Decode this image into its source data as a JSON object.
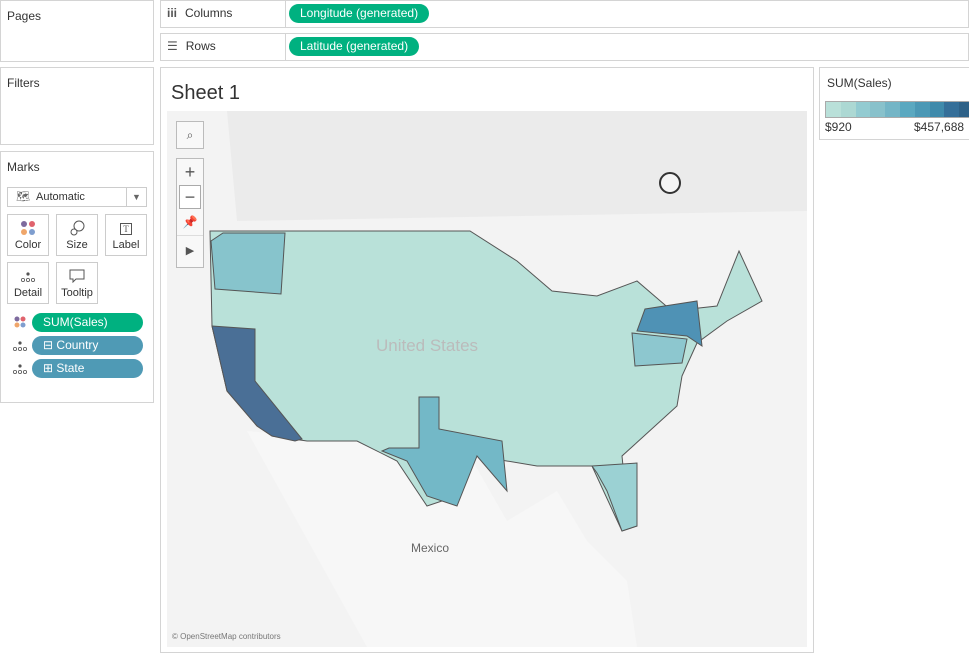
{
  "pages": {
    "title": "Pages"
  },
  "filters": {
    "title": "Filters"
  },
  "marks": {
    "title": "Marks",
    "type": "Automatic",
    "buttons": [
      {
        "label": "Color",
        "icon": "color-dots-icon"
      },
      {
        "label": "Size",
        "icon": "size-circles-icon"
      },
      {
        "label": "Label",
        "icon": "label-t-icon"
      },
      {
        "label": "Detail",
        "icon": "detail-dots-icon"
      },
      {
        "label": "Tooltip",
        "icon": "speech-bubble-icon"
      }
    ],
    "fields": [
      {
        "label": "SUM(Sales)",
        "kind": "color"
      },
      {
        "label": "Country",
        "kind": "detail",
        "toggle": "⊟"
      },
      {
        "label": "State",
        "kind": "detail",
        "toggle": "⊞"
      }
    ]
  },
  "shelves": {
    "columns": {
      "label": "Columns",
      "pill": "Longitude (generated)"
    },
    "rows": {
      "label": "Rows",
      "pill": "Latitude (generated)"
    }
  },
  "sheet": {
    "title": "Sheet 1",
    "attribution": "© OpenStreetMap contributors",
    "labels": {
      "country": "United States",
      "mexico": "Mexico"
    }
  },
  "legend": {
    "title": "SUM(Sales)",
    "min": "$920",
    "max": "$457,688",
    "colors": [
      "#b9e0d9",
      "#acd8d3",
      "#93cbd1",
      "#88c1cb",
      "#74b5c6",
      "#5aa8c0",
      "#4b98b5",
      "#3f8aab",
      "#356f99",
      "#2f6288"
    ]
  },
  "state_colors": {
    "base": "#b9e1d9",
    "California": "#4a6f96",
    "New York": "#4f92b5",
    "Texas": "#73b8c7",
    "Washington": "#87c4cc",
    "Pennsylvania": "#8dc7cf",
    "Florida": "#9bd1d3",
    "Illinois": "#a9d7d4"
  }
}
